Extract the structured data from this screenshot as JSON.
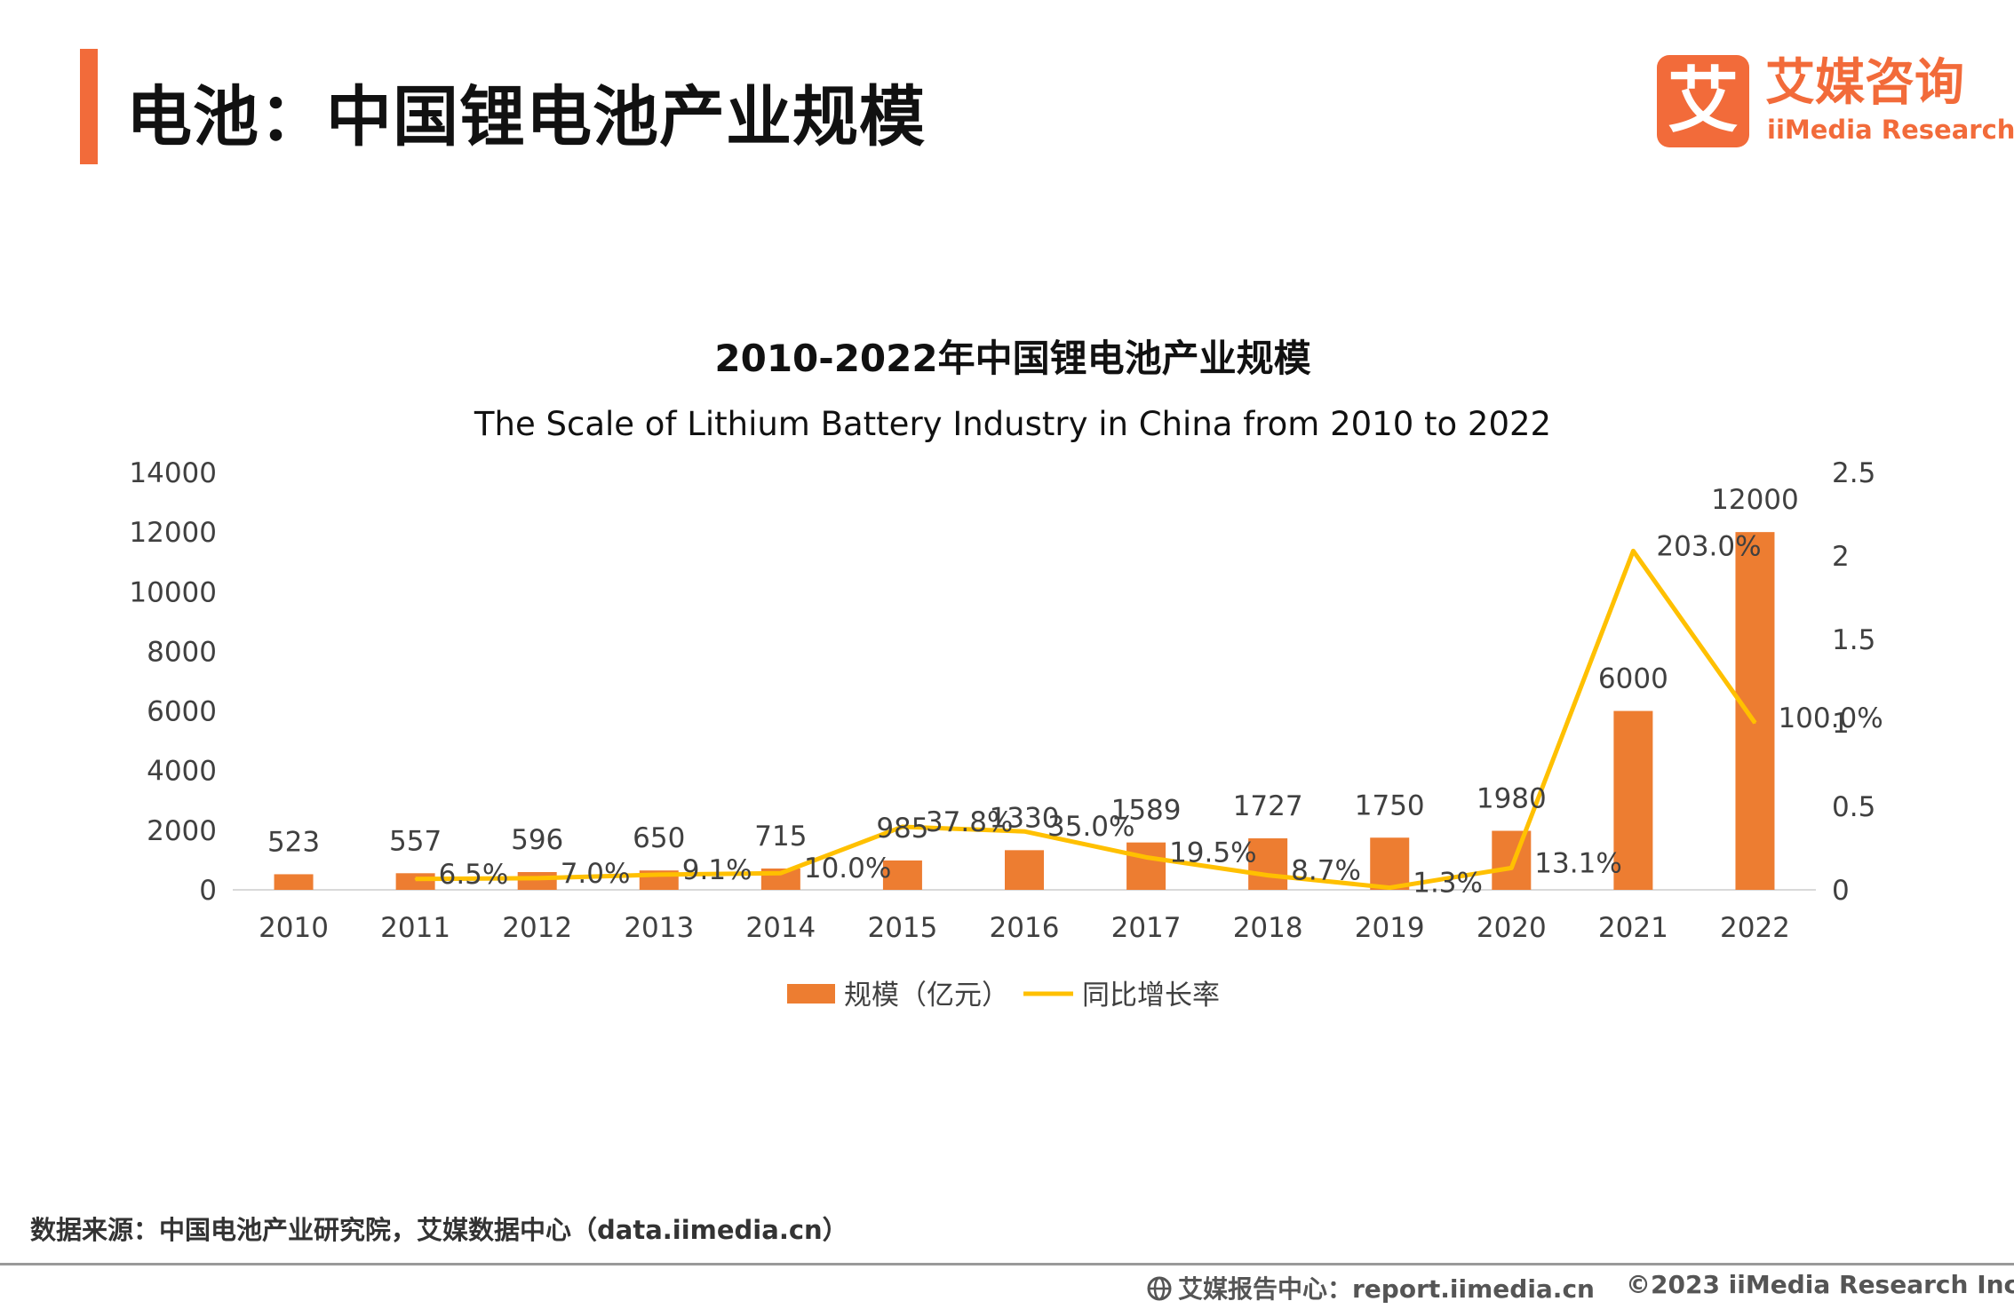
{
  "colors": {
    "accent": "#F26B3A",
    "bar": "#ED7D31",
    "line": "#FFC000",
    "axis": "#D9D9D9"
  },
  "header": {
    "title": "电池：中国锂电池产业规模"
  },
  "logo": {
    "mark": "艾",
    "cn": "艾媒咨询",
    "en": "iiMedia Research"
  },
  "chart_data": {
    "type": "bar",
    "title": "2010-2022年中国锂电池产业规模",
    "subtitle": "The Scale of Lithium Battery Industry in China from 2010 to 2022",
    "categories": [
      "2010",
      "2011",
      "2012",
      "2013",
      "2014",
      "2015",
      "2016",
      "2017",
      "2018",
      "2019",
      "2020",
      "2021",
      "2022"
    ],
    "series": [
      {
        "name": "规模（亿元）",
        "type": "bar",
        "axis": "left",
        "values": [
          523,
          557,
          596,
          650,
          715,
          985,
          1330,
          1589,
          1727,
          1750,
          1980,
          6000,
          12000
        ],
        "labels": [
          "523",
          "557",
          "596",
          "650",
          "715",
          "985",
          "1330",
          "1589",
          "1727",
          "1750",
          "1980",
          "6000",
          "12000"
        ]
      },
      {
        "name": "同比增长率",
        "type": "line",
        "axis": "right",
        "values": [
          null,
          0.065,
          0.07,
          0.091,
          0.1,
          0.378,
          0.35,
          0.195,
          0.087,
          0.013,
          0.131,
          2.03,
          1.0
        ],
        "labels": [
          null,
          "6.5%",
          "7.0%",
          "9.1%",
          "10.0%",
          "37.8%",
          "35.0%",
          "19.5%",
          "8.7%",
          "1.3%",
          "13.1%",
          "203.0%",
          "100.0%"
        ]
      }
    ],
    "y_left": {
      "min": 0,
      "max": 14000,
      "ticks": [
        "0",
        "2000",
        "4000",
        "6000",
        "8000",
        "10000",
        "12000",
        "14000"
      ]
    },
    "y_right": {
      "min": 0,
      "max": 2.5,
      "ticks": [
        "0",
        "0.5",
        "1",
        "1.5",
        "2",
        "2.5"
      ]
    },
    "legend_position": "bottom",
    "grid": false
  },
  "footer": {
    "source": "数据来源：中国电池产业研究院，艾媒数据中心（data.iimedia.cn）",
    "report": "艾媒报告中心：report.iimedia.cn",
    "copyright": "©2023  iiMedia Research  Inc"
  }
}
